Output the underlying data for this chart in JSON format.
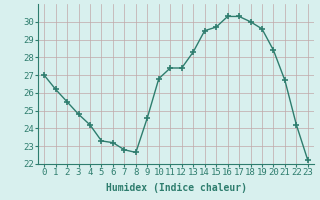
{
  "x": [
    0,
    1,
    2,
    3,
    4,
    5,
    6,
    7,
    8,
    9,
    10,
    11,
    12,
    13,
    14,
    15,
    16,
    17,
    18,
    19,
    20,
    21,
    22,
    23
  ],
  "y": [
    27.0,
    26.2,
    25.5,
    24.8,
    24.2,
    23.3,
    23.2,
    22.8,
    22.65,
    24.6,
    26.8,
    27.4,
    27.4,
    28.3,
    29.5,
    29.7,
    30.3,
    30.3,
    30.0,
    29.6,
    28.4,
    26.7,
    24.2,
    22.2
  ],
  "line_color": "#2e7d6e",
  "marker": "+",
  "markersize": 4,
  "linewidth": 1.0,
  "bg_color": "#d8f0ee",
  "grid_color": "#c0a8a8",
  "xlabel": "Humidex (Indice chaleur)",
  "xlabel_fontsize": 7,
  "tick_label_fontsize": 6.5,
  "ylim": [
    22,
    31
  ],
  "yticks": [
    22,
    23,
    24,
    25,
    26,
    27,
    28,
    29,
    30
  ],
  "xticks": [
    0,
    1,
    2,
    3,
    4,
    5,
    6,
    7,
    8,
    9,
    10,
    11,
    12,
    13,
    14,
    15,
    16,
    17,
    18,
    19,
    20,
    21,
    22,
    23
  ],
  "spine_color": "#2e7d6e"
}
